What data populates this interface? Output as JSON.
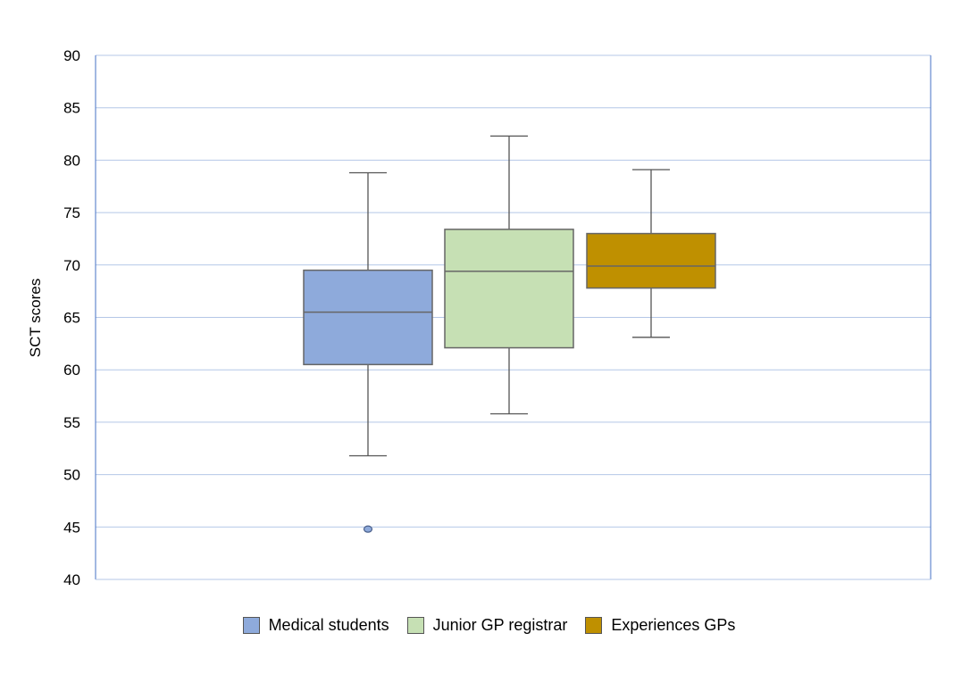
{
  "chart_data": {
    "type": "boxplot",
    "title": "",
    "xlabel": "",
    "ylabel": "SCT scores",
    "ylim": [
      40,
      90
    ],
    "yticks": [
      40,
      45,
      50,
      55,
      60,
      65,
      70,
      75,
      80,
      85,
      90
    ],
    "grid": true,
    "legend_position": "bottom",
    "series": [
      {
        "name": "Medical students",
        "color": "#8eaadb",
        "min": 51.8,
        "q1": 60.5,
        "median": 65.5,
        "q3": 69.5,
        "max": 78.8,
        "outliers": [
          44.8
        ]
      },
      {
        "name": "Junior GP registrar",
        "color": "#c6e0b4",
        "min": 55.8,
        "q1": 62.1,
        "median": 69.4,
        "q3": 73.4,
        "max": 82.3,
        "outliers": []
      },
      {
        "name": "Experiences GPs",
        "color": "#bf9000",
        "min": 63.1,
        "q1": 67.8,
        "median": 69.9,
        "q3": 73.0,
        "max": 79.1,
        "outliers": []
      }
    ]
  }
}
